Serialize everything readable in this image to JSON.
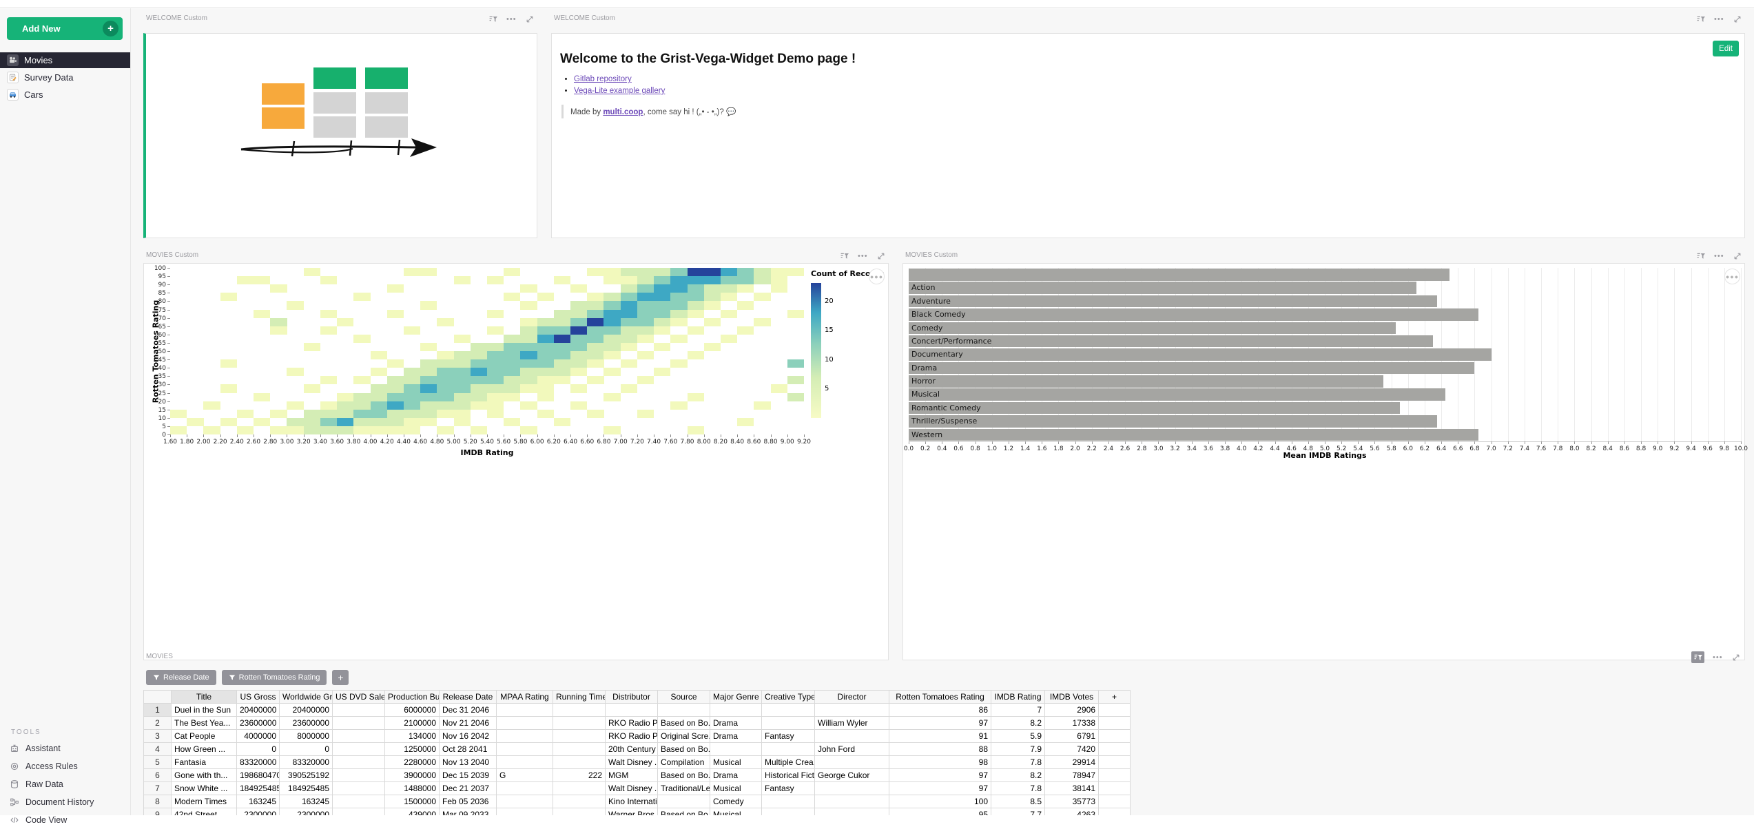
{
  "app": {
    "add_new_label": "Add New",
    "edit_label": "Edit"
  },
  "sidebar": {
    "pages": [
      {
        "label": "Movies",
        "icon": "movie-camera",
        "active": true
      },
      {
        "label": "Survey Data",
        "icon": "memo",
        "active": false
      },
      {
        "label": "Cars",
        "icon": "car",
        "active": false
      }
    ],
    "tools_label": "TOOLS",
    "tools": [
      {
        "label": "Assistant",
        "icon": "robot"
      },
      {
        "label": "Access Rules",
        "icon": "access-rules"
      },
      {
        "label": "Raw Data",
        "icon": "database"
      },
      {
        "label": "Document History",
        "icon": "history"
      },
      {
        "label": "Code View",
        "icon": "code"
      }
    ]
  },
  "widgets": {
    "welcome_left": {
      "title": "WELCOME Custom"
    },
    "welcome_right": {
      "title": "WELCOME Custom",
      "heading": "Welcome to the Grist-Vega-Widget Demo page !",
      "links": [
        {
          "label": "Gitlab repository"
        },
        {
          "label": "Vega-Lite example gallery"
        }
      ],
      "madeby_prefix": "Made by ",
      "madeby_link": "multi.coop",
      "madeby_suffix": ", come say hi !  („• - •„)? ",
      "madeby_emoji": "💬"
    },
    "heatmap_widget": {
      "title": "MOVIES Custom"
    },
    "bars_widget": {
      "title": "MOVIES Custom"
    },
    "table_widget": {
      "title": "MOVIES"
    }
  },
  "chart_data": [
    {
      "type": "heatmap",
      "xlabel": "IMDB Rating",
      "ylabel": "Rotten Tomatoes Rating",
      "legend_title": "Count of Records",
      "legend_ticks": [
        5,
        10,
        15,
        20
      ],
      "legend_max": 23,
      "x_bin_start": 1.6,
      "x_bin_step": 0.2,
      "x_bin_count": 38,
      "y_bin_start": 0,
      "y_bin_step": 5,
      "y_bin_count": 20,
      "colors": {
        "1": "#f2f9bc",
        "2": "#d4edb5",
        "3": "#8bd0bb",
        "4": "#3ea8c4",
        "5": "#25439b"
      },
      "cells_rows_top_to_bottom": [
        "00000000100000110000100001122235543211",
        "00001100010000000101000100112344433210",
        "00000010000001000000010010023443221010",
        "00010000000100000000101001234433210100",
        "00000001000000010000010022343332101000",
        "00000100010001000001000223443321010001",
        "00000020001000001000012235433210100100",
        "00000010010000100001023353322101001000",
        "00000000000100000100224533221010010000",
        "00000000100000010022333332210100100000",
        "00000000000010001223343322101001000000",
        "00010000000001022233333221010010000003",
        "00000001000010223343322210100100000000",
        "00000000010102233333221101001000000002",
        "00010000100022343322211010010000000010",
        "00000100001223333221101000100001000002",
        "00100001012234322211010010000010000100",
        "10001010222332221101001001001000000000",
        "01010102234222110100100100000000001000",
        "10101011222111101010010000100001000000"
      ]
    },
    {
      "type": "bar",
      "orientation": "horizontal",
      "categories": [
        "",
        "Action",
        "Adventure",
        "Black Comedy",
        "Comedy",
        "Concert/Performance",
        "Documentary",
        "Drama",
        "Horror",
        "Musical",
        "Romantic Comedy",
        "Thriller/Suspense",
        "Western"
      ],
      "values": [
        6.5,
        6.1,
        6.35,
        6.85,
        5.85,
        6.3,
        7.0,
        6.8,
        5.7,
        6.45,
        5.9,
        6.35,
        6.85
      ],
      "xlabel": "Mean IMDB Ratings",
      "xlim": [
        0,
        10
      ],
      "x_tick_step": 0.2,
      "bar_color": "#a5a5a2",
      "grid": true
    }
  ],
  "table": {
    "filters": [
      {
        "label": "Release Date"
      },
      {
        "label": "Rotten Tomatoes Rating"
      }
    ],
    "add_filter_label": "+",
    "add_column_label": "+",
    "headers": [
      "",
      "Title",
      "US Gross",
      "Worldwide Gr...",
      "US DVD Sales",
      "Production Bu...",
      "Release Date",
      "MPAA Rating",
      "Running Time...",
      "Distributor",
      "Source",
      "Major Genre",
      "Creative Type",
      "Director",
      "Rotten Tomatoes Rating",
      "IMDB Rating",
      "IMDB Votes"
    ],
    "rows": [
      [
        "1",
        "Duel in the Sun",
        "20400000",
        "20400000",
        "",
        "6000000",
        "Dec 31 2046",
        "",
        "",
        "",
        "",
        "",
        "",
        "",
        "86",
        "7",
        "2906"
      ],
      [
        "2",
        "The Best Yea...",
        "23600000",
        "23600000",
        "",
        "2100000",
        "Nov 21 2046",
        "",
        "",
        "RKO Radio P...",
        "Based on Bo...",
        "Drama",
        "",
        "William Wyler",
        "97",
        "8.2",
        "17338"
      ],
      [
        "3",
        "Cat People",
        "4000000",
        "8000000",
        "",
        "134000",
        "Nov 16 2042",
        "",
        "",
        "RKO Radio P...",
        "Original Scre...",
        "Drama",
        "Fantasy",
        "",
        "91",
        "5.9",
        "6791"
      ],
      [
        "4",
        "How Green ...",
        "0",
        "0",
        "",
        "1250000",
        "Oct 28 2041",
        "",
        "",
        "20th Century ...",
        "Based on Bo...",
        "",
        "",
        "John Ford",
        "88",
        "7.9",
        "7420"
      ],
      [
        "5",
        "Fantasia",
        "83320000",
        "83320000",
        "",
        "2280000",
        "Nov 13 2040",
        "",
        "",
        "Walt Disney ...",
        "Compilation",
        "Musical",
        "Multiple Crea...",
        "",
        "98",
        "7.8",
        "29914"
      ],
      [
        "6",
        "Gone with th...",
        "198680470",
        "390525192",
        "",
        "3900000",
        "Dec 15 2039",
        "G",
        "222",
        "MGM",
        "Based on Bo...",
        "Drama",
        "Historical Fict...",
        "George Cukor",
        "97",
        "8.2",
        "78947"
      ],
      [
        "7",
        "Snow White ...",
        "184925485",
        "184925485",
        "",
        "1488000",
        "Dec 21 2037",
        "",
        "",
        "Walt Disney ...",
        "Traditional/Le...",
        "Musical",
        "Fantasy",
        "",
        "97",
        "7.8",
        "38141"
      ],
      [
        "8",
        "Modern Times",
        "163245",
        "163245",
        "",
        "1500000",
        "Feb 05 2036",
        "",
        "",
        "Kino Internati...",
        "",
        "Comedy",
        "",
        "",
        "100",
        "8.5",
        "35773"
      ],
      [
        "9",
        "42nd Street",
        "2300000",
        "2300000",
        "",
        "439000",
        "Mar 09 2033",
        "",
        "",
        "Warner Bros.",
        "Based on Bo...",
        "Musical",
        "",
        "",
        "95",
        "7.7",
        "4263"
      ]
    ]
  }
}
